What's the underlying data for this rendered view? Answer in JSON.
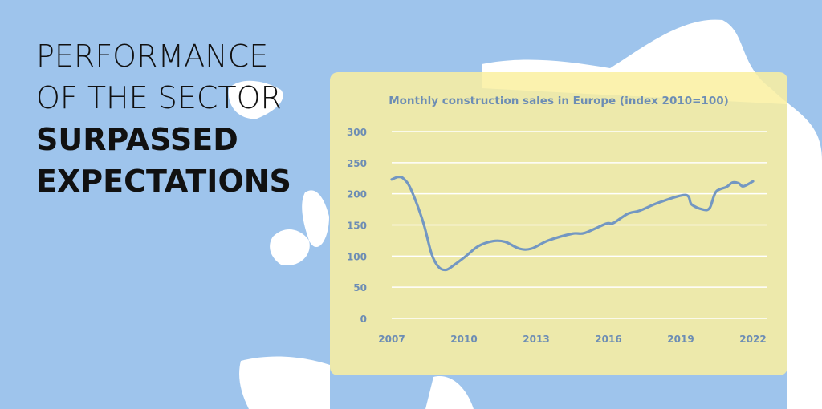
{
  "headline": {
    "line1": "PERFORMANCE",
    "line2": "OF THE SECTOR",
    "line3": "SURPASSED",
    "line4": "EXPECTATIONS"
  },
  "colors": {
    "sea": "#9ec4ec",
    "land": "#ffffff",
    "card": "#f8eea0",
    "line": "#7397c2",
    "axis_text": "#6d8db4",
    "grid": "#ffffff"
  },
  "chart_data": {
    "type": "line",
    "title": "Monthly construction sales in Europe (index 2010=100)",
    "xlabel": "",
    "ylabel": "",
    "xlim": [
      2007,
      2022
    ],
    "ylim": [
      0,
      300
    ],
    "x_ticks": [
      "2007",
      "2010",
      "2013",
      "2016",
      "2019",
      "2022"
    ],
    "y_ticks": [
      "300",
      "250",
      "200",
      "150",
      "100",
      "50",
      "0"
    ],
    "grid": "horizontal",
    "series": [
      {
        "x": [
          2007.0,
          2007.27,
          2007.5,
          2007.8,
          2008.3,
          2008.66,
          2008.96,
          2009.27,
          2009.6,
          2010.05,
          2010.6,
          2011.2,
          2011.7,
          2012.3,
          2012.8,
          2013.5,
          2014.5,
          2015.0,
          2015.9,
          2016.2,
          2016.8,
          2017.3,
          2018.1,
          2019.2,
          2019.45,
          2019.9,
          2020.2,
          2020.46,
          2020.9,
          2021.15,
          2021.4,
          2021.6,
          2022.0
        ],
        "y": [
          223,
          227,
          224,
          207,
          155,
          103,
          82,
          78,
          86,
          99,
          116,
          124,
          123,
          112,
          112,
          125,
          136,
          137,
          152,
          153,
          168,
          173,
          186,
          198,
          183,
          175,
          177,
          203,
          211,
          218,
          217,
          212,
          220
        ]
      }
    ]
  }
}
